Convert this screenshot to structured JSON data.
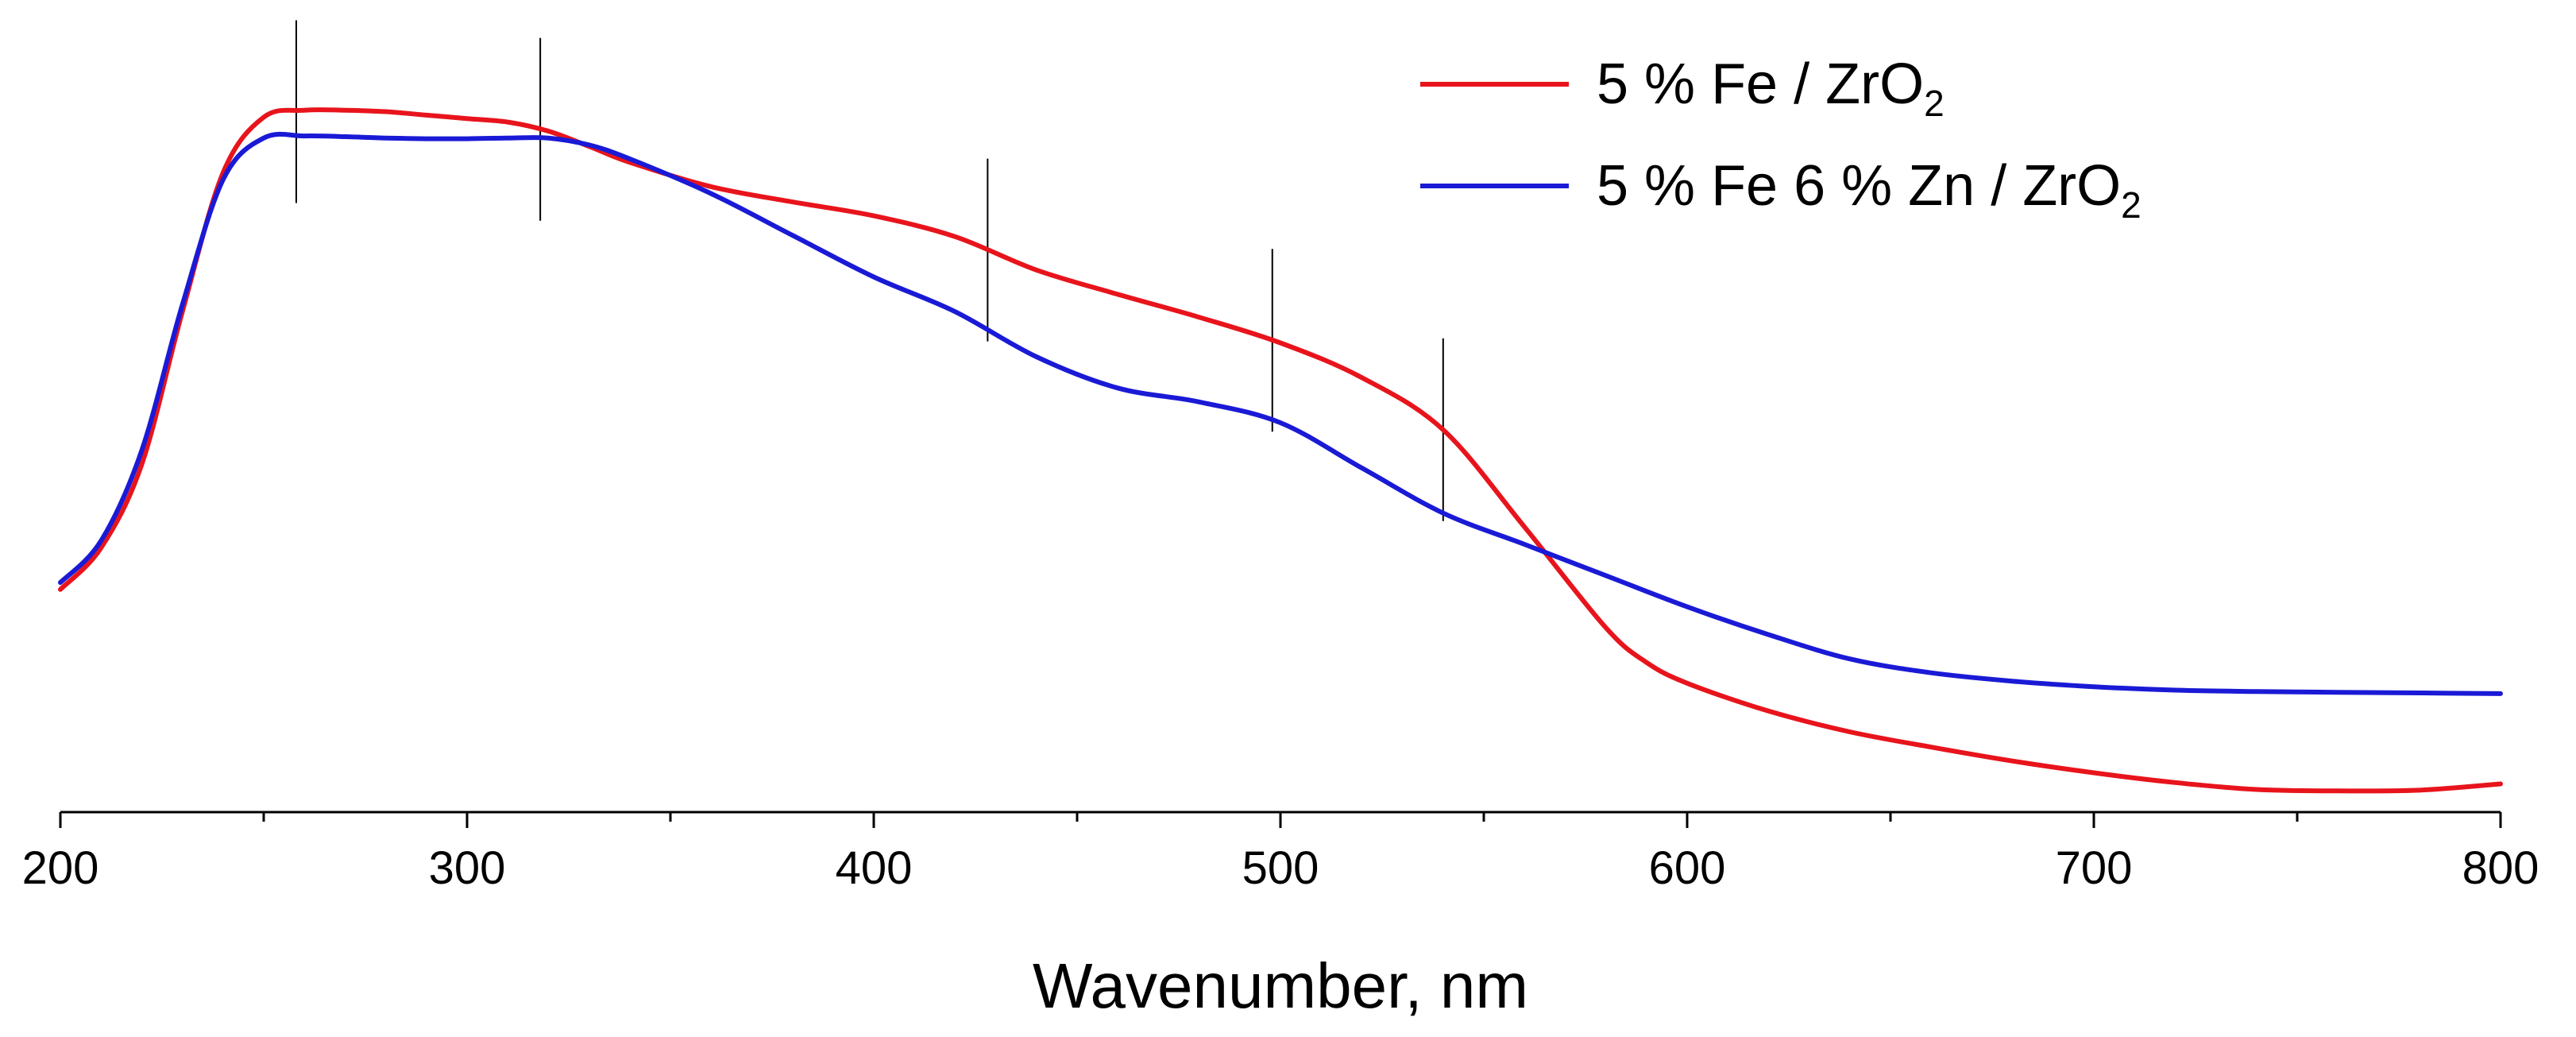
{
  "chart_data": {
    "type": "line",
    "title": "",
    "xlabel": "Wavenumber, nm",
    "ylabel": "",
    "xlim": [
      200,
      800
    ],
    "ylim": [
      0,
      100
    ],
    "xticks": [
      200,
      300,
      400,
      500,
      600,
      700,
      800
    ],
    "x_minor_step": 50,
    "show_y_axis": false,
    "grid": false,
    "legend_position": "top-right",
    "series": [
      {
        "name": "5 % Fe / ZrO2",
        "legend_main": "5 % Fe / ZrO",
        "legend_sub": "2",
        "color": "#e8141c",
        "x": [
          200,
          210,
          220,
          230,
          240,
          250,
          260,
          270,
          280,
          290,
          300,
          310,
          320,
          330,
          340,
          360,
          380,
          400,
          420,
          440,
          460,
          480,
          500,
          520,
          540,
          560,
          580,
          590,
          600,
          620,
          640,
          660,
          680,
          700,
          720,
          740,
          760,
          780,
          800
        ],
        "y": [
          30,
          36,
          48,
          70,
          90,
          98,
          99,
          99,
          98.8,
          98.3,
          97.8,
          97.3,
          96,
          93.8,
          91.5,
          88,
          85.8,
          83.8,
          80.8,
          76,
          72.5,
          69.2,
          65.5,
          60.5,
          53,
          39,
          24.5,
          19.5,
          16.5,
          12.5,
          9.5,
          7.3,
          5.3,
          3.6,
          2.2,
          1.2,
          1,
          1.1,
          2
        ]
      },
      {
        "name": "5 % Fe 6 % Zn / ZrO2",
        "legend_main": "5 % Fe 6 % Zn / ZrO",
        "legend_sub": "2",
        "color": "#1a1ad6",
        "x": [
          200,
          210,
          220,
          230,
          240,
          250,
          260,
          270,
          280,
          290,
          300,
          310,
          320,
          330,
          340,
          360,
          380,
          400,
          420,
          440,
          460,
          480,
          500,
          520,
          540,
          560,
          580,
          600,
          620,
          640,
          660,
          680,
          700,
          720,
          740,
          760,
          780,
          800
        ],
        "y": [
          31,
          37,
          50,
          71,
          89,
          95,
          95.3,
          95.2,
          95,
          94.9,
          94.9,
          95,
          95,
          94,
          92,
          87,
          81,
          75,
          70,
          63.5,
          59,
          57,
          54,
          47.5,
          41,
          36.5,
          32,
          27.5,
          23.5,
          20,
          18,
          16.8,
          16,
          15.5,
          15.3,
          15.2,
          15.1,
          15
        ]
      }
    ],
    "annotations": {
      "label": "absorption band markers (vertical lines)",
      "positions": [
        258,
        318,
        428,
        498,
        540
      ]
    }
  }
}
